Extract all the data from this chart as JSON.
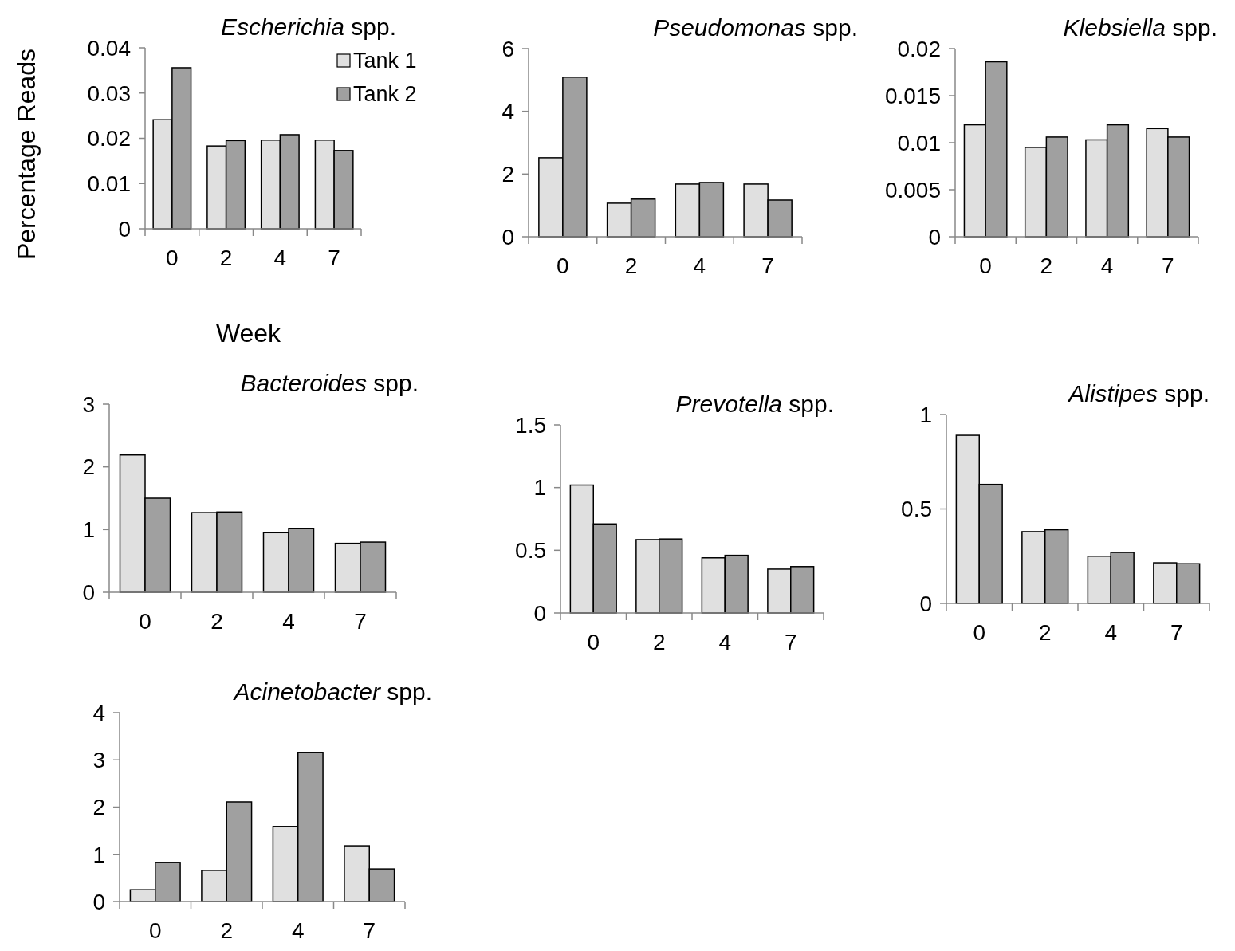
{
  "chart_data": [
    {
      "type": "bar",
      "title": "Escherichia spp.",
      "xlabel": "Week",
      "ylabel": "Percentage Reads",
      "categories": [
        "0",
        "2",
        "4",
        "7"
      ],
      "ylim": [
        0,
        0.04
      ],
      "yticks": [
        0,
        0.01,
        0.02,
        0.03,
        0.04
      ],
      "grid": false,
      "legend": "top right",
      "series": [
        {
          "name": "Tank 1",
          "color": "#e0e0e0",
          "values": [
            0.0241,
            0.0183,
            0.0196,
            0.0196
          ]
        },
        {
          "name": "Tank 2",
          "color": "#a0a0a0",
          "values": [
            0.0356,
            0.0195,
            0.0208,
            0.0173
          ]
        }
      ]
    },
    {
      "type": "bar",
      "title": "Pseudomonas spp.",
      "categories": [
        "0",
        "2",
        "4",
        "7"
      ],
      "ylim": [
        0,
        6
      ],
      "yticks": [
        0,
        2,
        4,
        6
      ],
      "grid": false,
      "series": [
        {
          "color": "#e0e0e0",
          "values": [
            2.52,
            1.07,
            1.68,
            1.68
          ]
        },
        {
          "color": "#a0a0a0",
          "values": [
            5.09,
            1.2,
            1.73,
            1.17
          ]
        }
      ]
    },
    {
      "type": "bar",
      "title": "Klebsiella spp.",
      "categories": [
        "0",
        "2",
        "4",
        "7"
      ],
      "ylim": [
        0,
        0.02
      ],
      "yticks": [
        0,
        0.005,
        0.01,
        0.015,
        0.02
      ],
      "grid": false,
      "series": [
        {
          "color": "#e0e0e0",
          "values": [
            0.0119,
            0.0095,
            0.0103,
            0.0115
          ]
        },
        {
          "color": "#a0a0a0",
          "values": [
            0.0186,
            0.0106,
            0.0119,
            0.0106
          ]
        }
      ]
    },
    {
      "type": "bar",
      "title": "Bacteroides spp.",
      "categories": [
        "0",
        "2",
        "4",
        "7"
      ],
      "ylim": [
        0,
        3
      ],
      "yticks": [
        0,
        1,
        2,
        3
      ],
      "grid": false,
      "series": [
        {
          "color": "#e0e0e0",
          "values": [
            2.19,
            1.27,
            0.95,
            0.78
          ]
        },
        {
          "color": "#a0a0a0",
          "values": [
            1.5,
            1.28,
            1.02,
            0.8
          ]
        }
      ]
    },
    {
      "type": "bar",
      "title": "Prevotella spp.",
      "categories": [
        "0",
        "2",
        "4",
        "7"
      ],
      "ylim": [
        0,
        1.5
      ],
      "yticks": [
        0,
        0.5,
        1,
        1.5
      ],
      "grid": false,
      "series": [
        {
          "color": "#e0e0e0",
          "values": [
            1.02,
            0.585,
            0.44,
            0.35
          ]
        },
        {
          "color": "#a0a0a0",
          "values": [
            0.71,
            0.59,
            0.46,
            0.37
          ]
        }
      ]
    },
    {
      "type": "bar",
      "title": "Alistipes spp.",
      "categories": [
        "0",
        "2",
        "4",
        "7"
      ],
      "ylim": [
        0,
        1
      ],
      "yticks": [
        0,
        0.5,
        1
      ],
      "grid": false,
      "series": [
        {
          "color": "#e0e0e0",
          "values": [
            0.89,
            0.38,
            0.25,
            0.215
          ]
        },
        {
          "color": "#a0a0a0",
          "values": [
            0.63,
            0.39,
            0.27,
            0.21
          ]
        }
      ]
    },
    {
      "type": "bar",
      "title": "Acinetobacter spp.",
      "categories": [
        "0",
        "2",
        "4",
        "7"
      ],
      "ylim": [
        0,
        4
      ],
      "yticks": [
        0,
        1,
        2,
        3,
        4
      ],
      "grid": false,
      "series": [
        {
          "color": "#e0e0e0",
          "values": [
            0.25,
            0.66,
            1.59,
            1.18
          ]
        },
        {
          "color": "#a0a0a0",
          "values": [
            0.83,
            2.11,
            3.16,
            0.69
          ]
        }
      ]
    }
  ]
}
